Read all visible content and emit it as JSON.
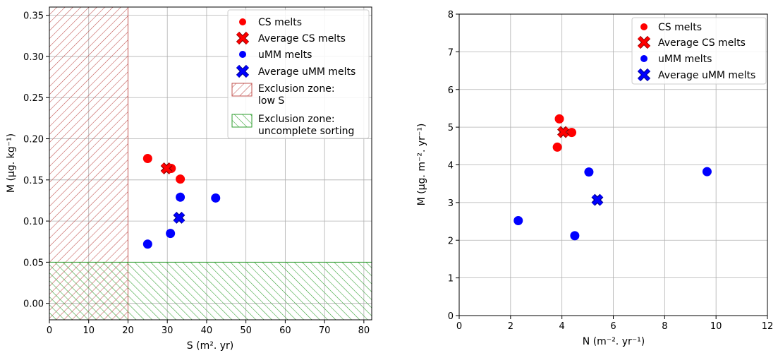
{
  "figure": {
    "left_panel": {
      "type": "scatter",
      "xlabel": "S (m². yr)",
      "ylabel": "M (µg. kg⁻¹)",
      "xlim": [
        0,
        82
      ],
      "ylim": [
        -0.02,
        0.36
      ],
      "grid": true,
      "legend_position": "top-right",
      "xticks": [
        0,
        10,
        20,
        30,
        40,
        50,
        60,
        70,
        80
      ],
      "yticks": [
        0.0,
        0.05,
        0.1,
        0.15,
        0.2,
        0.25,
        0.3,
        0.35
      ],
      "xtick_labels": [
        "0",
        "10",
        "20",
        "30",
        "40",
        "50",
        "60",
        "70",
        "80"
      ],
      "ytick_labels": [
        "0.00",
        "0.05",
        "0.10",
        "0.15",
        "0.20",
        "0.25",
        "0.30",
        "0.35"
      ],
      "legend": {
        "cs": "CS melts",
        "avg_cs": "Average CS melts",
        "umm": "uMM melts",
        "avg_umm": "Average uMM melts",
        "excl_s_line1": "Exclusion zone:",
        "excl_s_line2": "low S",
        "excl_sort_line1": "Exclusion zone:",
        "excl_sort_line2": "uncomplete sorting"
      }
    },
    "right_panel": {
      "type": "scatter",
      "xlabel": "N (m⁻². yr⁻¹)",
      "ylabel": "M (µg. m⁻². yr⁻¹)",
      "xlim": [
        0,
        12
      ],
      "ylim": [
        0,
        8
      ],
      "grid": true,
      "legend_position": "top-right",
      "xticks": [
        0,
        2,
        4,
        6,
        8,
        10,
        12
      ],
      "yticks": [
        0,
        1,
        2,
        3,
        4,
        5,
        6,
        7,
        8
      ],
      "xtick_labels": [
        "0",
        "2",
        "4",
        "6",
        "8",
        "10",
        "12"
      ],
      "ytick_labels": [
        "0",
        "1",
        "2",
        "3",
        "4",
        "5",
        "6",
        "7",
        "8"
      ],
      "legend": {
        "cs": "CS melts",
        "avg_cs": "Average CS melts",
        "umm": "uMM melts",
        "avg_umm": "Average uMM melts"
      }
    }
  },
  "colors": {
    "cs": "#ff0000",
    "umm": "#0000ff",
    "exclusion_low_s": "#c0504d",
    "exclusion_sorting": "#2e9e2e",
    "grid": "#b0b0b0"
  },
  "chart_data": [
    {
      "type": "scatter",
      "xlabel": "S (m². yr)",
      "ylabel": "M (µg. kg⁻¹)",
      "xlim": [
        0,
        82
      ],
      "ylim": [
        -0.02,
        0.36
      ],
      "series": [
        {
          "name": "CS melts",
          "points": [
            [
              25.0,
              0.176
            ],
            [
              31.0,
              0.164
            ],
            [
              33.3,
              0.151
            ]
          ]
        },
        {
          "name": "Average CS melts",
          "points": [
            [
              29.8,
              0.164
            ]
          ]
        },
        {
          "name": "uMM melts",
          "points": [
            [
              25.0,
              0.072
            ],
            [
              30.8,
              0.085
            ],
            [
              33.3,
              0.129
            ],
            [
              42.3,
              0.128
            ]
          ]
        },
        {
          "name": "Average uMM melts",
          "points": [
            [
              33.0,
              0.104
            ]
          ]
        }
      ],
      "regions": [
        {
          "name": "Exclusion zone: low S",
          "x": [
            0,
            20
          ],
          "y": [
            -0.02,
            0.36
          ]
        },
        {
          "name": "Exclusion zone: uncomplete sorting",
          "x": [
            0,
            82
          ],
          "y": [
            -0.02,
            0.05
          ]
        }
      ]
    },
    {
      "type": "scatter",
      "xlabel": "N (m⁻². yr⁻¹)",
      "ylabel": "M (µg. m⁻². yr⁻¹)",
      "xlim": [
        0,
        12
      ],
      "ylim": [
        0,
        8
      ],
      "series": [
        {
          "name": "CS melts",
          "points": [
            [
              3.9,
              5.22
            ],
            [
              4.38,
              4.86
            ],
            [
              3.82,
              4.47
            ]
          ]
        },
        {
          "name": "Average CS melts",
          "points": [
            [
              4.05,
              4.87
            ]
          ]
        },
        {
          "name": "uMM melts",
          "points": [
            [
              2.3,
              2.52
            ],
            [
              4.5,
              2.12
            ],
            [
              5.05,
              3.81
            ],
            [
              9.65,
              3.82
            ]
          ]
        },
        {
          "name": "Average uMM melts",
          "points": [
            [
              5.38,
              3.07
            ]
          ]
        }
      ]
    }
  ]
}
